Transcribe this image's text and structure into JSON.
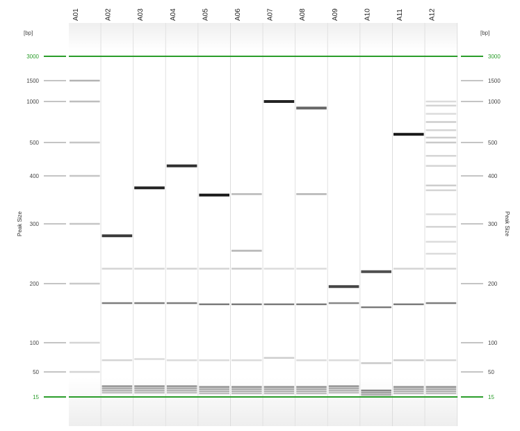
{
  "chart_data": {
    "type": "gel",
    "units": "[bp]",
    "axis_title": "Peak Size",
    "lanes": [
      "A01",
      "A02",
      "A03",
      "A04",
      "A05",
      "A06",
      "A07",
      "A08",
      "A09",
      "A10",
      "A11",
      "A12"
    ],
    "ladder": [
      15,
      50,
      100,
      200,
      300,
      400,
      500,
      1000,
      1500,
      3000
    ],
    "markers": [
      15,
      3000
    ],
    "marker_color": "#2a9d2a",
    "lane_bands": [
      {
        "lane": "A01",
        "bands": [
          {
            "bp": 1500,
            "intensity": 0.3
          },
          {
            "bp": 1000,
            "intensity": 0.25
          },
          {
            "bp": 500,
            "intensity": 0.22
          },
          {
            "bp": 400,
            "intensity": 0.22
          },
          {
            "bp": 300,
            "intensity": 0.22
          },
          {
            "bp": 200,
            "intensity": 0.2
          },
          {
            "bp": 100,
            "intensity": 0.15
          },
          {
            "bp": 50,
            "intensity": 0.15
          }
        ]
      },
      {
        "lane": "A02",
        "bands": [
          {
            "bp": 280,
            "intensity": 0.85
          },
          {
            "bp": 225,
            "intensity": 0.15
          },
          {
            "bp": 167,
            "intensity": 0.55
          },
          {
            "bp": 70,
            "intensity": 0.15
          },
          {
            "bp": 30,
            "intensity": 0.45
          },
          {
            "bp": 27,
            "intensity": 0.35
          },
          {
            "bp": 24,
            "intensity": 0.3
          },
          {
            "bp": 21,
            "intensity": 0.25
          }
        ]
      },
      {
        "lane": "A03",
        "bands": [
          {
            "bp": 375,
            "intensity": 0.95
          },
          {
            "bp": 225,
            "intensity": 0.15
          },
          {
            "bp": 167,
            "intensity": 0.55
          },
          {
            "bp": 72,
            "intensity": 0.12
          },
          {
            "bp": 30,
            "intensity": 0.45
          },
          {
            "bp": 27,
            "intensity": 0.35
          },
          {
            "bp": 24,
            "intensity": 0.3
          },
          {
            "bp": 21,
            "intensity": 0.25
          }
        ]
      },
      {
        "lane": "A04",
        "bands": [
          {
            "bp": 430,
            "intensity": 0.9
          },
          {
            "bp": 225,
            "intensity": 0.15
          },
          {
            "bp": 167,
            "intensity": 0.55
          },
          {
            "bp": 70,
            "intensity": 0.12
          },
          {
            "bp": 30,
            "intensity": 0.45
          },
          {
            "bp": 27,
            "intensity": 0.35
          },
          {
            "bp": 24,
            "intensity": 0.3
          },
          {
            "bp": 21,
            "intensity": 0.25
          }
        ]
      },
      {
        "lane": "A05",
        "bands": [
          {
            "bp": 360,
            "intensity": 1.0
          },
          {
            "bp": 225,
            "intensity": 0.15
          },
          {
            "bp": 165,
            "intensity": 0.55
          },
          {
            "bp": 70,
            "intensity": 0.12
          },
          {
            "bp": 29,
            "intensity": 0.45
          },
          {
            "bp": 26,
            "intensity": 0.35
          },
          {
            "bp": 23,
            "intensity": 0.3
          },
          {
            "bp": 20,
            "intensity": 0.25
          }
        ]
      },
      {
        "lane": "A06",
        "bands": [
          {
            "bp": 362,
            "intensity": 0.28
          },
          {
            "bp": 255,
            "intensity": 0.3
          },
          {
            "bp": 225,
            "intensity": 0.2
          },
          {
            "bp": 165,
            "intensity": 0.55
          },
          {
            "bp": 70,
            "intensity": 0.12
          },
          {
            "bp": 29,
            "intensity": 0.45
          },
          {
            "bp": 26,
            "intensity": 0.35
          },
          {
            "bp": 23,
            "intensity": 0.3
          },
          {
            "bp": 20,
            "intensity": 0.25
          }
        ]
      },
      {
        "lane": "A07",
        "bands": [
          {
            "bp": 1000,
            "intensity": 0.95
          },
          {
            "bp": 225,
            "intensity": 0.12
          },
          {
            "bp": 165,
            "intensity": 0.55
          },
          {
            "bp": 74,
            "intensity": 0.18
          },
          {
            "bp": 29,
            "intensity": 0.45
          },
          {
            "bp": 26,
            "intensity": 0.35
          },
          {
            "bp": 23,
            "intensity": 0.3
          },
          {
            "bp": 20,
            "intensity": 0.25
          }
        ]
      },
      {
        "lane": "A08",
        "bands": [
          {
            "bp": 920,
            "intensity": 0.65
          },
          {
            "bp": 362,
            "intensity": 0.3
          },
          {
            "bp": 225,
            "intensity": 0.12
          },
          {
            "bp": 165,
            "intensity": 0.55
          },
          {
            "bp": 70,
            "intensity": 0.12
          },
          {
            "bp": 29,
            "intensity": 0.45
          },
          {
            "bp": 26,
            "intensity": 0.35
          },
          {
            "bp": 23,
            "intensity": 0.3
          },
          {
            "bp": 20,
            "intensity": 0.25
          }
        ]
      },
      {
        "lane": "A09",
        "bands": [
          {
            "bp": 195,
            "intensity": 0.8
          },
          {
            "bp": 167,
            "intensity": 0.5
          },
          {
            "bp": 70,
            "intensity": 0.12
          },
          {
            "bp": 30,
            "intensity": 0.45
          },
          {
            "bp": 27,
            "intensity": 0.35
          },
          {
            "bp": 24,
            "intensity": 0.3
          },
          {
            "bp": 21,
            "intensity": 0.25
          }
        ]
      },
      {
        "lane": "A10",
        "bands": [
          {
            "bp": 220,
            "intensity": 0.75
          },
          {
            "bp": 160,
            "intensity": 0.55
          },
          {
            "bp": 65,
            "intensity": 0.2
          },
          {
            "bp": 24,
            "intensity": 0.5
          },
          {
            "bp": 21,
            "intensity": 0.4
          },
          {
            "bp": 18,
            "intensity": 0.35
          }
        ]
      },
      {
        "lane": "A11",
        "bands": [
          {
            "bp": 600,
            "intensity": 1.0
          },
          {
            "bp": 225,
            "intensity": 0.15
          },
          {
            "bp": 165,
            "intensity": 0.55
          },
          {
            "bp": 70,
            "intensity": 0.18
          },
          {
            "bp": 29,
            "intensity": 0.45
          },
          {
            "bp": 26,
            "intensity": 0.35
          },
          {
            "bp": 23,
            "intensity": 0.3
          },
          {
            "bp": 20,
            "intensity": 0.25
          }
        ]
      },
      {
        "lane": "A12",
        "bands": [
          {
            "bp": 1000,
            "intensity": 0.12
          },
          {
            "bp": 950,
            "intensity": 0.15
          },
          {
            "bp": 850,
            "intensity": 0.12
          },
          {
            "bp": 750,
            "intensity": 0.18
          },
          {
            "bp": 650,
            "intensity": 0.15
          },
          {
            "bp": 560,
            "intensity": 0.18
          },
          {
            "bp": 500,
            "intensity": 0.2
          },
          {
            "bp": 460,
            "intensity": 0.15
          },
          {
            "bp": 430,
            "intensity": 0.15
          },
          {
            "bp": 380,
            "intensity": 0.18
          },
          {
            "bp": 370,
            "intensity": 0.15
          },
          {
            "bp": 320,
            "intensity": 0.12
          },
          {
            "bp": 295,
            "intensity": 0.15
          },
          {
            "bp": 270,
            "intensity": 0.12
          },
          {
            "bp": 250,
            "intensity": 0.12
          },
          {
            "bp": 225,
            "intensity": 0.15
          },
          {
            "bp": 167,
            "intensity": 0.55
          },
          {
            "bp": 70,
            "intensity": 0.15
          },
          {
            "bp": 29,
            "intensity": 0.45
          },
          {
            "bp": 26,
            "intensity": 0.35
          },
          {
            "bp": 23,
            "intensity": 0.3
          },
          {
            "bp": 20,
            "intensity": 0.25
          }
        ]
      }
    ]
  }
}
